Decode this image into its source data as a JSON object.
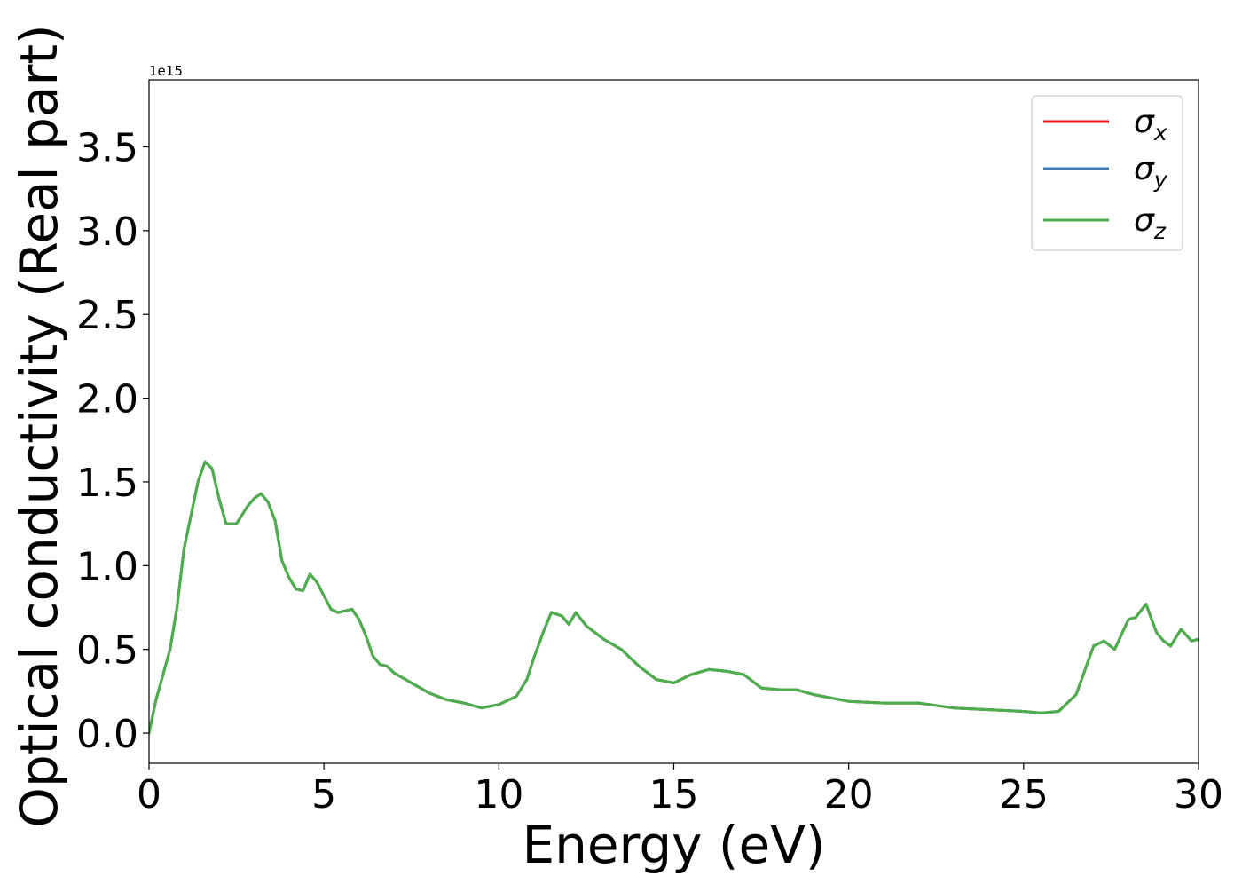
{
  "chart_data": {
    "type": "line",
    "xlabel": "Energy (eV)",
    "ylabel": "Optical conductivity (Real part)",
    "offset_text": "1e15",
    "xlim": [
      0,
      30
    ],
    "ylim": [
      -0.18,
      3.9
    ],
    "x_ticks": [
      0,
      5,
      10,
      15,
      20,
      25,
      30
    ],
    "x_tick_labels": [
      "0",
      "5",
      "10",
      "15",
      "20",
      "25",
      "30"
    ],
    "y_ticks": [
      0.0,
      0.5,
      1.0,
      1.5,
      2.0,
      2.5,
      3.0,
      3.5
    ],
    "y_tick_labels": [
      "0.0",
      "0.5",
      "1.0",
      "1.5",
      "2.0",
      "2.5",
      "3.0",
      "3.5"
    ],
    "grid": false,
    "legend_placement": "top-right",
    "x": [
      0,
      0.2,
      0.4,
      0.6,
      0.8,
      1.0,
      1.2,
      1.4,
      1.6,
      1.8,
      2.0,
      2.2,
      2.5,
      2.8,
      3.0,
      3.2,
      3.4,
      3.6,
      3.8,
      4.0,
      4.2,
      4.4,
      4.6,
      4.8,
      5.0,
      5.2,
      5.4,
      5.6,
      5.8,
      6.0,
      6.2,
      6.4,
      6.6,
      6.8,
      7.0,
      7.5,
      8.0,
      8.5,
      9.0,
      9.5,
      10.0,
      10.5,
      10.8,
      11.0,
      11.3,
      11.5,
      11.8,
      12.0,
      12.2,
      12.5,
      13.0,
      13.5,
      14.0,
      14.5,
      15.0,
      15.5,
      16.0,
      16.5,
      17.0,
      17.5,
      18.0,
      18.5,
      19.0,
      19.5,
      20.0,
      21.0,
      22.0,
      23.0,
      24.0,
      25.0,
      25.5,
      26.0,
      26.5,
      27.0,
      27.3,
      27.6,
      28.0,
      28.2,
      28.5,
      28.8,
      29.0,
      29.2,
      29.5,
      29.8,
      30.0
    ],
    "series": [
      {
        "name": "σx",
        "color": "#e41a1c",
        "values": [
          0.0,
          0.2,
          0.35,
          0.5,
          0.75,
          1.1,
          1.3,
          1.5,
          1.62,
          1.58,
          1.4,
          1.25,
          1.25,
          1.35,
          1.4,
          1.43,
          1.38,
          1.27,
          1.03,
          0.93,
          0.86,
          0.85,
          0.95,
          0.9,
          0.82,
          0.74,
          0.72,
          0.73,
          0.74,
          0.68,
          0.58,
          0.46,
          0.41,
          0.4,
          0.36,
          0.3,
          0.24,
          0.2,
          0.18,
          0.15,
          0.17,
          0.22,
          0.32,
          0.45,
          0.62,
          0.72,
          0.7,
          0.65,
          0.72,
          0.64,
          0.56,
          0.5,
          0.4,
          0.32,
          0.3,
          0.35,
          0.38,
          0.37,
          0.35,
          0.27,
          0.26,
          0.26,
          0.23,
          0.21,
          0.19,
          0.18,
          0.18,
          0.15,
          0.14,
          0.13,
          0.12,
          0.13,
          0.23,
          0.52,
          0.55,
          0.5,
          0.68,
          0.69,
          0.77,
          0.6,
          0.55,
          0.52,
          0.62,
          0.55,
          0.56
        ]
      },
      {
        "name": "σy",
        "color": "#377eb8",
        "values": [
          0.0,
          0.2,
          0.35,
          0.5,
          0.75,
          1.1,
          1.3,
          1.5,
          1.62,
          1.58,
          1.4,
          1.25,
          1.25,
          1.35,
          1.4,
          1.43,
          1.38,
          1.27,
          1.03,
          0.93,
          0.86,
          0.85,
          0.95,
          0.9,
          0.82,
          0.74,
          0.72,
          0.73,
          0.74,
          0.68,
          0.58,
          0.46,
          0.41,
          0.4,
          0.36,
          0.3,
          0.24,
          0.2,
          0.18,
          0.15,
          0.17,
          0.22,
          0.32,
          0.45,
          0.62,
          0.72,
          0.7,
          0.65,
          0.72,
          0.64,
          0.56,
          0.5,
          0.4,
          0.32,
          0.3,
          0.35,
          0.38,
          0.37,
          0.35,
          0.27,
          0.26,
          0.26,
          0.23,
          0.21,
          0.19,
          0.18,
          0.18,
          0.15,
          0.14,
          0.13,
          0.12,
          0.13,
          0.23,
          0.52,
          0.55,
          0.5,
          0.68,
          0.69,
          0.77,
          0.6,
          0.55,
          0.52,
          0.62,
          0.55,
          0.56
        ]
      },
      {
        "name": "σz",
        "color": "#4daf4a",
        "values": [
          0.0,
          0.2,
          0.35,
          0.5,
          0.75,
          1.1,
          1.3,
          1.5,
          1.62,
          1.58,
          1.4,
          1.25,
          1.25,
          1.35,
          1.4,
          1.43,
          1.38,
          1.27,
          1.03,
          0.93,
          0.86,
          0.85,
          0.95,
          0.9,
          0.82,
          0.74,
          0.72,
          0.73,
          0.74,
          0.68,
          0.58,
          0.46,
          0.41,
          0.4,
          0.36,
          0.3,
          0.24,
          0.2,
          0.18,
          0.15,
          0.17,
          0.22,
          0.32,
          0.45,
          0.62,
          0.72,
          0.7,
          0.65,
          0.72,
          0.64,
          0.56,
          0.5,
          0.4,
          0.32,
          0.3,
          0.35,
          0.38,
          0.37,
          0.35,
          0.27,
          0.26,
          0.26,
          0.23,
          0.21,
          0.19,
          0.18,
          0.18,
          0.15,
          0.14,
          0.13,
          0.12,
          0.13,
          0.23,
          0.52,
          0.55,
          0.5,
          0.68,
          0.69,
          0.77,
          0.6,
          0.55,
          0.52,
          0.62,
          0.55,
          0.56
        ]
      }
    ],
    "legend": [
      {
        "base": "σ",
        "sub": "x",
        "color": "#e41a1c"
      },
      {
        "base": "σ",
        "sub": "y",
        "color": "#377eb8"
      },
      {
        "base": "σ",
        "sub": "z",
        "color": "#4daf4a"
      }
    ]
  }
}
